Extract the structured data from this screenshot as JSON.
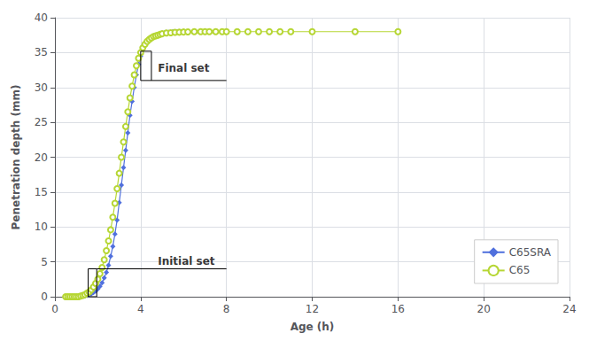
{
  "chart_data": {
    "type": "line",
    "title": "",
    "xlabel": "Age (h)",
    "ylabel": "Penetration depth (mm)",
    "xlim": [
      0,
      24
    ],
    "ylim": [
      0,
      40
    ],
    "xticks": [
      0,
      4,
      8,
      12,
      16,
      20,
      24
    ],
    "yticks": [
      0,
      5,
      10,
      15,
      20,
      25,
      30,
      35,
      40
    ],
    "grid": true,
    "legend": "lower right",
    "series": [
      {
        "name": "C65SRA",
        "marker": "diamond",
        "x": [
          0.5,
          0.6,
          0.7,
          0.8,
          0.9,
          1.0,
          1.1,
          1.2,
          1.3,
          1.4,
          1.5,
          1.6,
          1.7,
          1.8,
          1.9,
          2.0,
          2.1,
          2.2,
          2.3,
          2.4,
          2.5,
          2.6,
          2.7,
          2.8,
          2.9,
          3.0,
          3.1,
          3.2,
          3.3,
          3.4,
          3.5,
          3.6,
          3.7,
          3.8,
          3.9,
          4.0,
          4.1,
          4.2,
          4.3,
          4.4,
          4.5,
          4.6,
          4.7,
          4.8,
          4.9,
          5.0,
          5.1,
          5.2,
          5.3,
          5.4,
          5.5,
          5.6,
          5.7,
          5.8,
          5.9,
          6.0,
          6.2,
          6.5,
          6.8,
          7.0,
          7.5,
          8.0
        ],
        "values": [
          0.0,
          0.0,
          0.0,
          0.0,
          0.0,
          0.0,
          0.0,
          0.0,
          0.1,
          0.1,
          0.2,
          0.3,
          0.4,
          0.6,
          0.8,
          1.1,
          1.5,
          2.0,
          2.7,
          3.5,
          4.5,
          5.8,
          7.2,
          9.0,
          11.0,
          13.5,
          16.0,
          18.5,
          21.0,
          23.5,
          26.0,
          28.0,
          30.0,
          31.8,
          33.3,
          34.5,
          35.5,
          36.2,
          36.7,
          37.0,
          37.2,
          37.4,
          37.5,
          37.6,
          37.7,
          37.8,
          37.8,
          37.9,
          37.9,
          37.9,
          38.0,
          38.0,
          38.0,
          38.0,
          38.0,
          38.0,
          38.0,
          38.0,
          38.0,
          38.0,
          38.0,
          38.0
        ]
      },
      {
        "name": "C65",
        "marker": "open_circle",
        "x": [
          0.5,
          0.6,
          0.7,
          0.8,
          0.9,
          1.0,
          1.1,
          1.2,
          1.3,
          1.4,
          1.5,
          1.6,
          1.7,
          1.8,
          1.9,
          2.0,
          2.1,
          2.2,
          2.3,
          2.4,
          2.5,
          2.6,
          2.7,
          2.8,
          2.9,
          3.0,
          3.1,
          3.2,
          3.3,
          3.4,
          3.5,
          3.6,
          3.7,
          3.8,
          3.9,
          4.0,
          4.1,
          4.2,
          4.3,
          4.4,
          4.5,
          4.6,
          4.7,
          4.8,
          4.9,
          5.0,
          5.2,
          5.4,
          5.6,
          5.8,
          6.0,
          6.2,
          6.5,
          6.8,
          7.0,
          7.2,
          7.5,
          7.8,
          8.0,
          8.5,
          9.0,
          9.5,
          10.0,
          10.5,
          11.0,
          12.0,
          14.0,
          16.0
        ],
        "values": [
          0.0,
          0.0,
          0.0,
          0.0,
          0.0,
          0.0,
          0.0,
          0.1,
          0.2,
          0.3,
          0.5,
          0.7,
          1.0,
          1.4,
          1.9,
          2.5,
          3.3,
          4.2,
          5.3,
          6.6,
          8.0,
          9.6,
          11.4,
          13.4,
          15.5,
          17.7,
          20.0,
          22.2,
          24.4,
          26.5,
          28.5,
          30.2,
          31.8,
          33.1,
          34.2,
          35.0,
          35.7,
          36.2,
          36.6,
          36.9,
          37.1,
          37.3,
          37.4,
          37.5,
          37.6,
          37.7,
          37.8,
          37.85,
          37.9,
          37.92,
          37.95,
          37.97,
          38.0,
          38.0,
          38.0,
          38.0,
          38.0,
          38.0,
          38.0,
          38.0,
          38.0,
          38.0,
          38.0,
          38.0,
          38.0,
          38.0,
          38.0,
          38.0
        ]
      }
    ],
    "annotations": [
      {
        "text": "Initial set",
        "x": 4.8,
        "y": 4.3,
        "lines": [
          [
            [
              1.55,
              4.0
            ],
            [
              1.95,
              4.0
            ]
          ],
          [
            [
              1.55,
              0.0
            ],
            [
              1.95,
              0.0
            ]
          ],
          [
            [
              1.55,
              0.0
            ],
            [
              1.55,
              4.0
            ]
          ],
          [
            [
              1.95,
              0.0
            ],
            [
              1.95,
              4.0
            ]
          ],
          [
            [
              1.95,
              4.0
            ],
            [
              8.0,
              4.0
            ]
          ]
        ]
      },
      {
        "text": "Final set",
        "x": 4.8,
        "y": 32.0,
        "lines": [
          [
            [
              4.0,
              35.2
            ],
            [
              4.5,
              35.2
            ]
          ],
          [
            [
              4.0,
              31.0
            ],
            [
              4.0,
              35.2
            ]
          ],
          [
            [
              4.5,
              31.0
            ],
            [
              4.5,
              35.2
            ]
          ],
          [
            [
              4.0,
              31.0
            ],
            [
              8.0,
              31.0
            ]
          ]
        ]
      }
    ]
  }
}
